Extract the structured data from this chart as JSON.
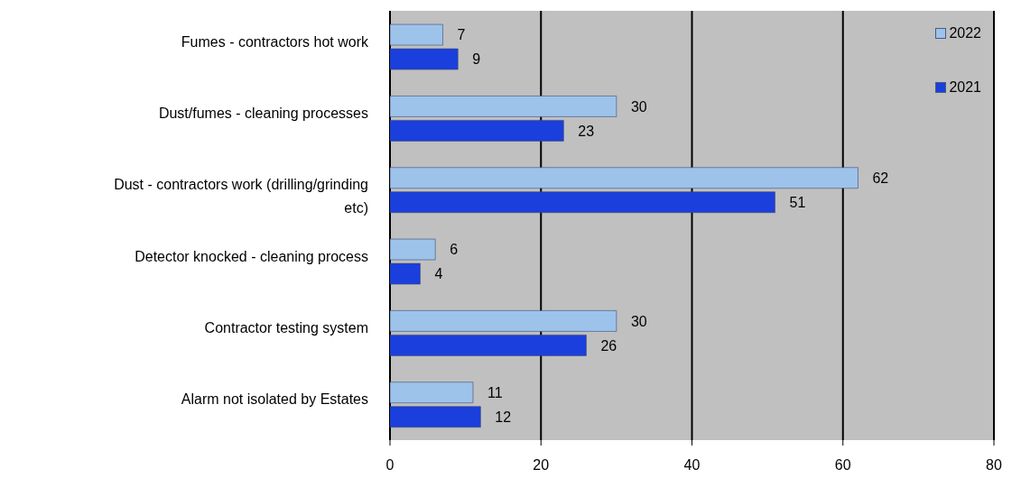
{
  "chart_data": {
    "type": "bar",
    "orientation": "horizontal",
    "categories": [
      "Fumes - contractors hot work",
      "Dust/fumes - cleaning processes",
      "Dust - contractors work (drilling/grinding etc)",
      "Detector knocked - cleaning process",
      "Contractor testing system",
      "Alarm not isolated by Estates"
    ],
    "series": [
      {
        "name": "2022",
        "color": "#9dc3eb",
        "values": [
          7,
          30,
          62,
          6,
          30,
          11
        ]
      },
      {
        "name": "2021",
        "color": "#1a3fdc",
        "values": [
          9,
          23,
          51,
          4,
          26,
          12
        ]
      }
    ],
    "xlim": [
      0,
      80
    ],
    "xticks": [
      0,
      20,
      40,
      60,
      80
    ],
    "grid": "x",
    "legend": "top right",
    "data_labels": true
  }
}
